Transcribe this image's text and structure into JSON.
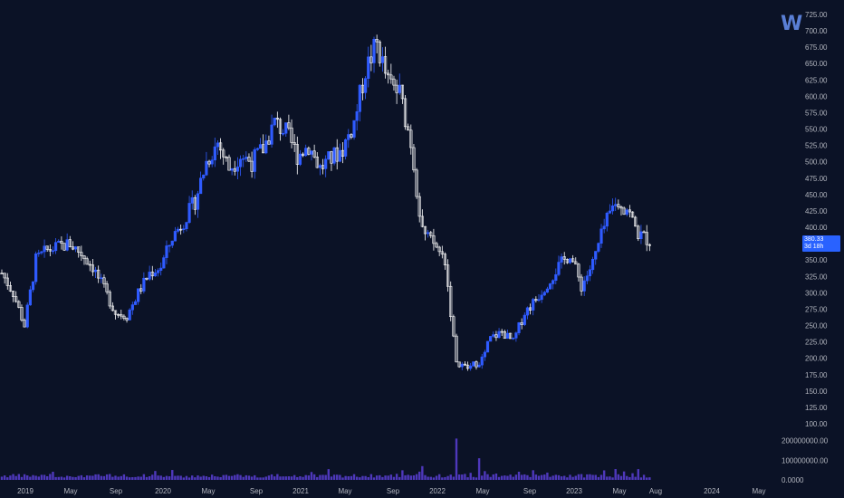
{
  "logo": {
    "text": "W",
    "icon": "tradingview-watermark-icon"
  },
  "last_price": {
    "value": "380.33",
    "countdown": "3d 18h",
    "color": "#2962ff"
  },
  "colors": {
    "background": "#0b1226",
    "up_candle": "#2f5bff",
    "down_candle": "#ffffff",
    "volume": "#5b3fd6",
    "axis_text": "#b2b5be"
  },
  "chart_data": {
    "type": "candlestick",
    "timeframe": "weekly",
    "y_ticks": [
      "725.00",
      "700.00",
      "675.00",
      "650.00",
      "625.00",
      "600.00",
      "575.00",
      "550.00",
      "525.00",
      "500.00",
      "475.00",
      "450.00",
      "425.00",
      "400.00",
      "375.00",
      "350.00",
      "325.00",
      "300.00",
      "275.00",
      "250.00",
      "225.00",
      "200.00",
      "175.00",
      "150.00",
      "125.00",
      "100.00"
    ],
    "ylim": [
      100,
      725
    ],
    "volume_ticks": [
      "200000000.00",
      "100000000.00",
      "0.0000"
    ],
    "volume_lim": [
      0,
      230000000
    ],
    "x_ticks": [
      "2019",
      "May",
      "Sep",
      "2020",
      "May",
      "Sep",
      "2021",
      "May",
      "Sep",
      "2022",
      "May",
      "Sep",
      "2023",
      "May",
      "Aug",
      "2024",
      "May"
    ],
    "price_path": [
      [
        "2019-01",
        330
      ],
      [
        "2019-02",
        300
      ],
      [
        "2019-03",
        250
      ],
      [
        "2019-04",
        350
      ],
      [
        "2019-05",
        365
      ],
      [
        "2019-06",
        370
      ],
      [
        "2019-07",
        375
      ],
      [
        "2019-08",
        360
      ],
      [
        "2019-09",
        340
      ],
      [
        "2019-10",
        305
      ],
      [
        "2019-11",
        270
      ],
      [
        "2019-12",
        265
      ],
      [
        "2020-01",
        300
      ],
      [
        "2020-02",
        330
      ],
      [
        "2020-03",
        340
      ],
      [
        "2020-04",
        385
      ],
      [
        "2020-05",
        410
      ],
      [
        "2020-06",
        440
      ],
      [
        "2020-07",
        500
      ],
      [
        "2020-08",
        530
      ],
      [
        "2020-09",
        490
      ],
      [
        "2020-10",
        510
      ],
      [
        "2020-11",
        500
      ],
      [
        "2020-12",
        520
      ],
      [
        "2021-01",
        560
      ],
      [
        "2021-02",
        545
      ],
      [
        "2021-03",
        510
      ],
      [
        "2021-04",
        525
      ],
      [
        "2021-05",
        490
      ],
      [
        "2021-06",
        505
      ],
      [
        "2021-07",
        520
      ],
      [
        "2021-08",
        560
      ],
      [
        "2021-09",
        640
      ],
      [
        "2021-10",
        680
      ],
      [
        "2021-11",
        620
      ],
      [
        "2021-12",
        605
      ],
      [
        "2022-01",
        530
      ],
      [
        "2022-02",
        390
      ],
      [
        "2022-03",
        375
      ],
      [
        "2022-04",
        350
      ],
      [
        "2022-05",
        190
      ],
      [
        "2022-06",
        185
      ],
      [
        "2022-07",
        195
      ],
      [
        "2022-08",
        230
      ],
      [
        "2022-09",
        240
      ],
      [
        "2022-10",
        225
      ],
      [
        "2022-11",
        270
      ],
      [
        "2022-12",
        290
      ],
      [
        "2023-01",
        315
      ],
      [
        "2023-02",
        340
      ],
      [
        "2023-03",
        360
      ],
      [
        "2023-04",
        310
      ],
      [
        "2023-05",
        345
      ],
      [
        "2023-06",
        400
      ],
      [
        "2023-07",
        440
      ],
      [
        "2023-08",
        430
      ],
      [
        "2023-09",
        390
      ],
      [
        "2023-09b",
        380
      ]
    ],
    "volume_spikes": [
      [
        "2022-02",
        70000000
      ],
      [
        "2022-05",
        210000000
      ],
      [
        "2022-07",
        110000000
      ],
      [
        "2023-07",
        55000000
      ]
    ]
  }
}
